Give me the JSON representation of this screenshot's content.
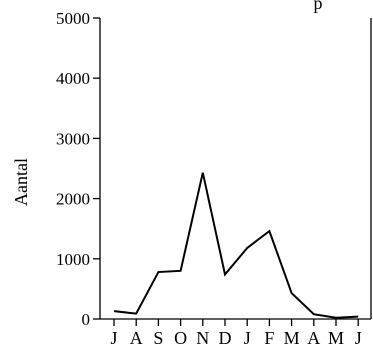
{
  "chart_data": {
    "type": "line",
    "title": "",
    "title_partial": "p",
    "xlabel": "",
    "ylabel": "Aantal",
    "categories": [
      "J",
      "A",
      "S",
      "O",
      "N",
      "D",
      "J",
      "F",
      "M",
      "A",
      "M",
      "J"
    ],
    "series": [
      {
        "values": [
          130,
          90,
          780,
          800,
          2430,
          740,
          1180,
          1460,
          430,
          80,
          20,
          40
        ]
      }
    ],
    "ylim": [
      0,
      5000
    ],
    "yticks": [
      0,
      1000,
      2000,
      3000,
      4000,
      5000
    ],
    "grid": false,
    "legend": "none",
    "line_color": "#000000"
  }
}
